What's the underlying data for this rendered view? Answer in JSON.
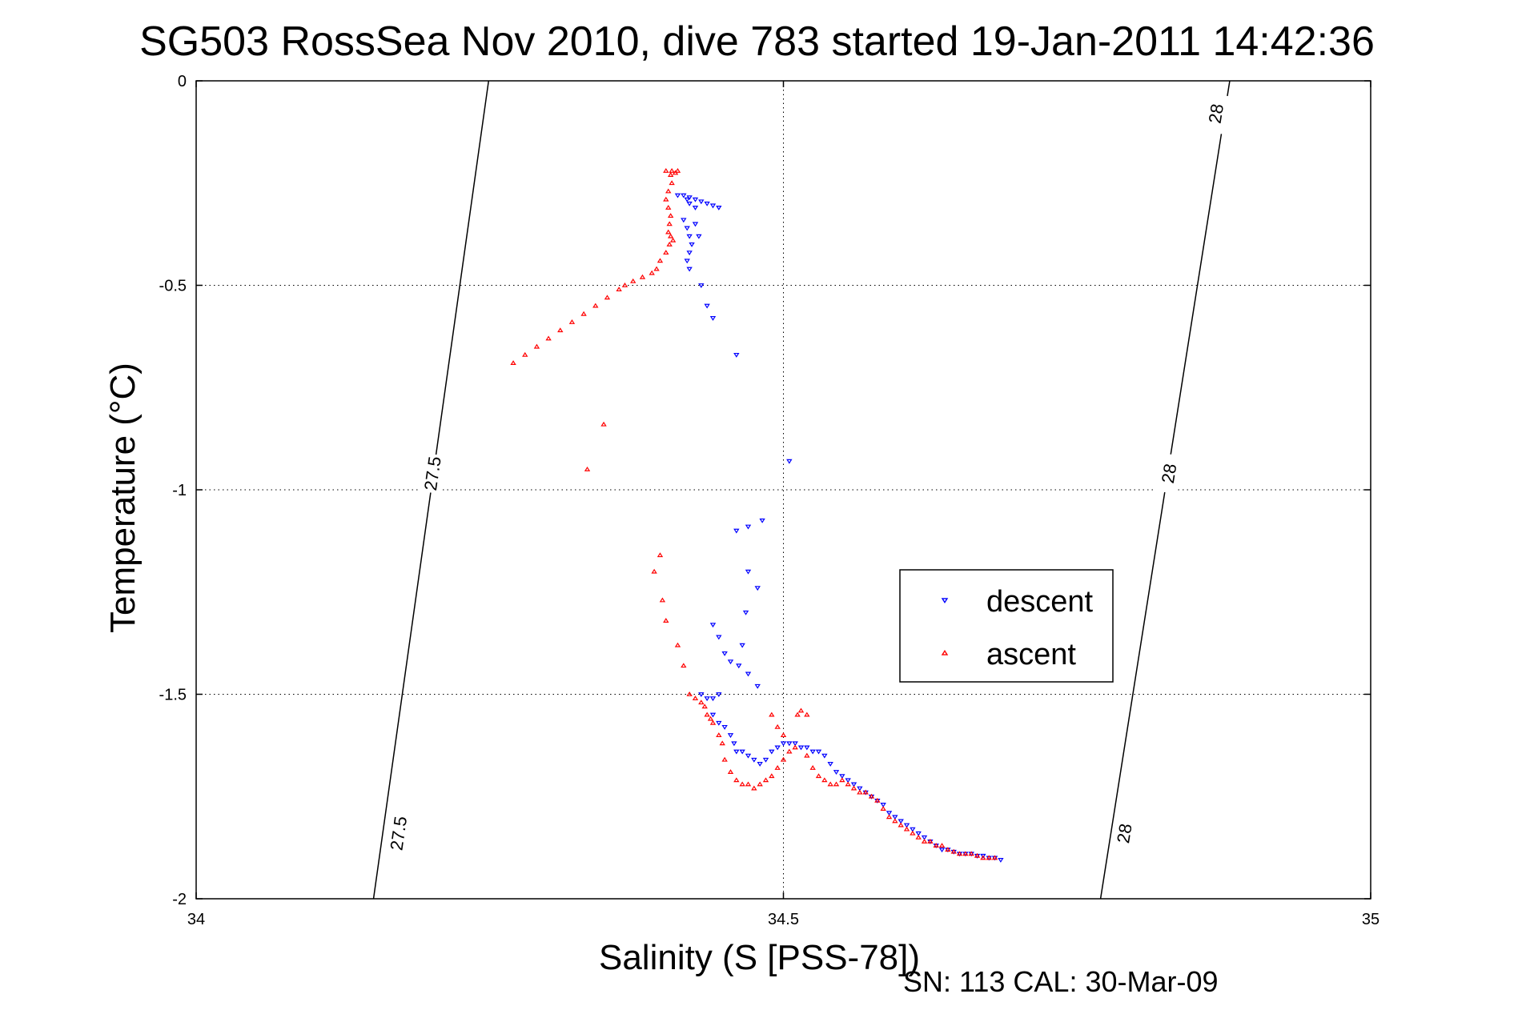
{
  "title": "SG503 RossSea Nov 2010, dive 783 started 19-Jan-2011 14:42:36",
  "footer": "SN: 113  CAL: 30-Mar-09",
  "chart_data": {
    "type": "scatter",
    "title": "SG503 RossSea Nov 2010, dive 783 started 19-Jan-2011 14:42:36",
    "xlabel": "Salinity (S [PSS-78])",
    "ylabel": "Temperature (°C)",
    "xlim": [
      34,
      35
    ],
    "ylim": [
      -2,
      0
    ],
    "xticks": [
      34,
      34.5,
      35
    ],
    "xtick_labels": [
      "34",
      "34.5",
      "35"
    ],
    "yticks": [
      0,
      -0.5,
      -1,
      -1.5,
      -2
    ],
    "ytick_labels": [
      "0",
      "-0.5",
      "-1",
      "-1.5",
      "-2"
    ],
    "grid": true,
    "legend_position": "center-right",
    "colors": {
      "descent": "#0000ff",
      "ascent": "#ff0000",
      "contour": "#000000"
    },
    "contours": [
      {
        "label": "27.5",
        "points": [
          [
            34.151,
            -2
          ],
          [
            34.249,
            0
          ]
        ],
        "label_positions": [
          [
            34.172,
            -1.84
          ],
          [
            34.201,
            -0.96
          ]
        ]
      },
      {
        "label": "28",
        "points": [
          [
            34.77,
            -2
          ],
          [
            34.88,
            0
          ]
        ],
        "label_positions": [
          [
            34.79,
            -1.84
          ],
          [
            34.828,
            -0.96
          ],
          [
            34.868,
            -0.08
          ]
        ]
      }
    ],
    "series": [
      {
        "name": "descent",
        "marker": "triangle-down",
        "points": [
          [
            34.41,
            -0.28
          ],
          [
            34.415,
            -0.28
          ],
          [
            34.42,
            -0.285
          ],
          [
            34.425,
            -0.29
          ],
          [
            34.43,
            -0.295
          ],
          [
            34.435,
            -0.3
          ],
          [
            34.44,
            -0.305
          ],
          [
            34.445,
            -0.31
          ],
          [
            34.418,
            -0.29
          ],
          [
            34.42,
            -0.3
          ],
          [
            34.425,
            -0.31
          ],
          [
            34.415,
            -0.34
          ],
          [
            34.418,
            -0.36
          ],
          [
            34.42,
            -0.38
          ],
          [
            34.422,
            -0.4
          ],
          [
            34.42,
            -0.42
          ],
          [
            34.418,
            -0.44
          ],
          [
            34.42,
            -0.46
          ],
          [
            34.425,
            -0.35
          ],
          [
            34.428,
            -0.38
          ],
          [
            34.43,
            -0.5
          ],
          [
            34.435,
            -0.55
          ],
          [
            34.44,
            -0.58
          ],
          [
            34.46,
            -0.67
          ],
          [
            34.505,
            -0.93
          ],
          [
            34.46,
            -1.1
          ],
          [
            34.47,
            -1.09
          ],
          [
            34.482,
            -1.075
          ],
          [
            34.47,
            -1.2
          ],
          [
            34.478,
            -1.24
          ],
          [
            34.468,
            -1.3
          ],
          [
            34.44,
            -1.33
          ],
          [
            34.445,
            -1.36
          ],
          [
            34.45,
            -1.4
          ],
          [
            34.455,
            -1.42
          ],
          [
            34.462,
            -1.43
          ],
          [
            34.465,
            -1.38
          ],
          [
            34.47,
            -1.45
          ],
          [
            34.478,
            -1.48
          ],
          [
            34.43,
            -1.5
          ],
          [
            34.435,
            -1.51
          ],
          [
            34.44,
            -1.51
          ],
          [
            34.445,
            -1.5
          ],
          [
            34.44,
            -1.55
          ],
          [
            34.445,
            -1.57
          ],
          [
            34.45,
            -1.58
          ],
          [
            34.455,
            -1.6
          ],
          [
            34.458,
            -1.62
          ],
          [
            34.46,
            -1.64
          ],
          [
            34.465,
            -1.64
          ],
          [
            34.47,
            -1.65
          ],
          [
            34.475,
            -1.66
          ],
          [
            34.48,
            -1.67
          ],
          [
            34.485,
            -1.66
          ],
          [
            34.49,
            -1.64
          ],
          [
            34.495,
            -1.63
          ],
          [
            34.5,
            -1.62
          ],
          [
            34.505,
            -1.62
          ],
          [
            34.51,
            -1.62
          ],
          [
            34.515,
            -1.63
          ],
          [
            34.52,
            -1.63
          ],
          [
            34.525,
            -1.64
          ],
          [
            34.53,
            -1.64
          ],
          [
            34.535,
            -1.65
          ],
          [
            34.54,
            -1.67
          ],
          [
            34.545,
            -1.69
          ],
          [
            34.55,
            -1.7
          ],
          [
            34.555,
            -1.71
          ],
          [
            34.56,
            -1.72
          ],
          [
            34.565,
            -1.73
          ],
          [
            34.57,
            -1.74
          ],
          [
            34.575,
            -1.75
          ],
          [
            34.58,
            -1.76
          ],
          [
            34.585,
            -1.77
          ],
          [
            34.59,
            -1.79
          ],
          [
            34.595,
            -1.8
          ],
          [
            34.6,
            -1.81
          ],
          [
            34.605,
            -1.82
          ],
          [
            34.61,
            -1.83
          ],
          [
            34.615,
            -1.84
          ],
          [
            34.62,
            -1.85
          ],
          [
            34.625,
            -1.86
          ],
          [
            34.63,
            -1.87
          ],
          [
            34.635,
            -1.88
          ],
          [
            34.64,
            -1.88
          ],
          [
            34.645,
            -1.885
          ],
          [
            34.65,
            -1.89
          ],
          [
            34.655,
            -1.89
          ],
          [
            34.66,
            -1.89
          ],
          [
            34.665,
            -1.895
          ],
          [
            34.67,
            -1.895
          ],
          [
            34.675,
            -1.9
          ],
          [
            34.68,
            -1.9
          ],
          [
            34.685,
            -1.905
          ]
        ]
      },
      {
        "name": "ascent",
        "marker": "triangle-up",
        "points": [
          [
            34.4,
            -0.22
          ],
          [
            34.405,
            -0.22
          ],
          [
            34.408,
            -0.225
          ],
          [
            34.404,
            -0.23
          ],
          [
            34.41,
            -0.22
          ],
          [
            34.405,
            -0.25
          ],
          [
            34.402,
            -0.27
          ],
          [
            34.4,
            -0.29
          ],
          [
            34.402,
            -0.31
          ],
          [
            34.404,
            -0.33
          ],
          [
            34.403,
            -0.35
          ],
          [
            34.402,
            -0.37
          ],
          [
            34.404,
            -0.38
          ],
          [
            34.406,
            -0.39
          ],
          [
            34.403,
            -0.4
          ],
          [
            34.4,
            -0.42
          ],
          [
            34.395,
            -0.44
          ],
          [
            34.392,
            -0.46
          ],
          [
            34.388,
            -0.47
          ],
          [
            34.38,
            -0.48
          ],
          [
            34.372,
            -0.49
          ],
          [
            34.365,
            -0.5
          ],
          [
            34.36,
            -0.51
          ],
          [
            34.35,
            -0.53
          ],
          [
            34.34,
            -0.55
          ],
          [
            34.33,
            -0.57
          ],
          [
            34.32,
            -0.59
          ],
          [
            34.31,
            -0.61
          ],
          [
            34.3,
            -0.63
          ],
          [
            34.29,
            -0.65
          ],
          [
            34.28,
            -0.67
          ],
          [
            34.27,
            -0.69
          ],
          [
            34.347,
            -0.84
          ],
          [
            34.333,
            -0.95
          ],
          [
            34.395,
            -1.16
          ],
          [
            34.39,
            -1.2
          ],
          [
            34.397,
            -1.27
          ],
          [
            34.4,
            -1.32
          ],
          [
            34.41,
            -1.38
          ],
          [
            34.415,
            -1.43
          ],
          [
            34.42,
            -1.5
          ],
          [
            34.425,
            -1.51
          ],
          [
            34.43,
            -1.52
          ],
          [
            34.433,
            -1.53
          ],
          [
            34.435,
            -1.55
          ],
          [
            34.438,
            -1.56
          ],
          [
            34.44,
            -1.57
          ],
          [
            34.445,
            -1.6
          ],
          [
            34.448,
            -1.62
          ],
          [
            34.45,
            -1.66
          ],
          [
            34.455,
            -1.69
          ],
          [
            34.46,
            -1.71
          ],
          [
            34.465,
            -1.72
          ],
          [
            34.47,
            -1.72
          ],
          [
            34.475,
            -1.73
          ],
          [
            34.48,
            -1.72
          ],
          [
            34.485,
            -1.71
          ],
          [
            34.49,
            -1.7
          ],
          [
            34.495,
            -1.68
          ],
          [
            34.5,
            -1.66
          ],
          [
            34.505,
            -1.64
          ],
          [
            34.51,
            -1.63
          ],
          [
            34.49,
            -1.55
          ],
          [
            34.495,
            -1.58
          ],
          [
            34.5,
            -1.6
          ],
          [
            34.512,
            -1.55
          ],
          [
            34.515,
            -1.54
          ],
          [
            34.52,
            -1.55
          ],
          [
            34.52,
            -1.65
          ],
          [
            34.525,
            -1.68
          ],
          [
            34.53,
            -1.7
          ],
          [
            34.535,
            -1.71
          ],
          [
            34.54,
            -1.72
          ],
          [
            34.545,
            -1.72
          ],
          [
            34.55,
            -1.71
          ],
          [
            34.555,
            -1.72
          ],
          [
            34.56,
            -1.73
          ],
          [
            34.565,
            -1.74
          ],
          [
            34.57,
            -1.74
          ],
          [
            34.575,
            -1.75
          ],
          [
            34.58,
            -1.76
          ],
          [
            34.585,
            -1.78
          ],
          [
            34.59,
            -1.8
          ],
          [
            34.595,
            -1.81
          ],
          [
            34.6,
            -1.82
          ],
          [
            34.605,
            -1.83
          ],
          [
            34.61,
            -1.84
          ],
          [
            34.615,
            -1.85
          ],
          [
            34.62,
            -1.86
          ],
          [
            34.625,
            -1.86
          ],
          [
            34.63,
            -1.87
          ],
          [
            34.635,
            -1.87
          ],
          [
            34.64,
            -1.88
          ],
          [
            34.645,
            -1.885
          ],
          [
            34.65,
            -1.89
          ],
          [
            34.655,
            -1.89
          ],
          [
            34.66,
            -1.89
          ],
          [
            34.665,
            -1.895
          ],
          [
            34.67,
            -1.9
          ],
          [
            34.675,
            -1.9
          ],
          [
            34.68,
            -1.9
          ]
        ]
      }
    ]
  }
}
